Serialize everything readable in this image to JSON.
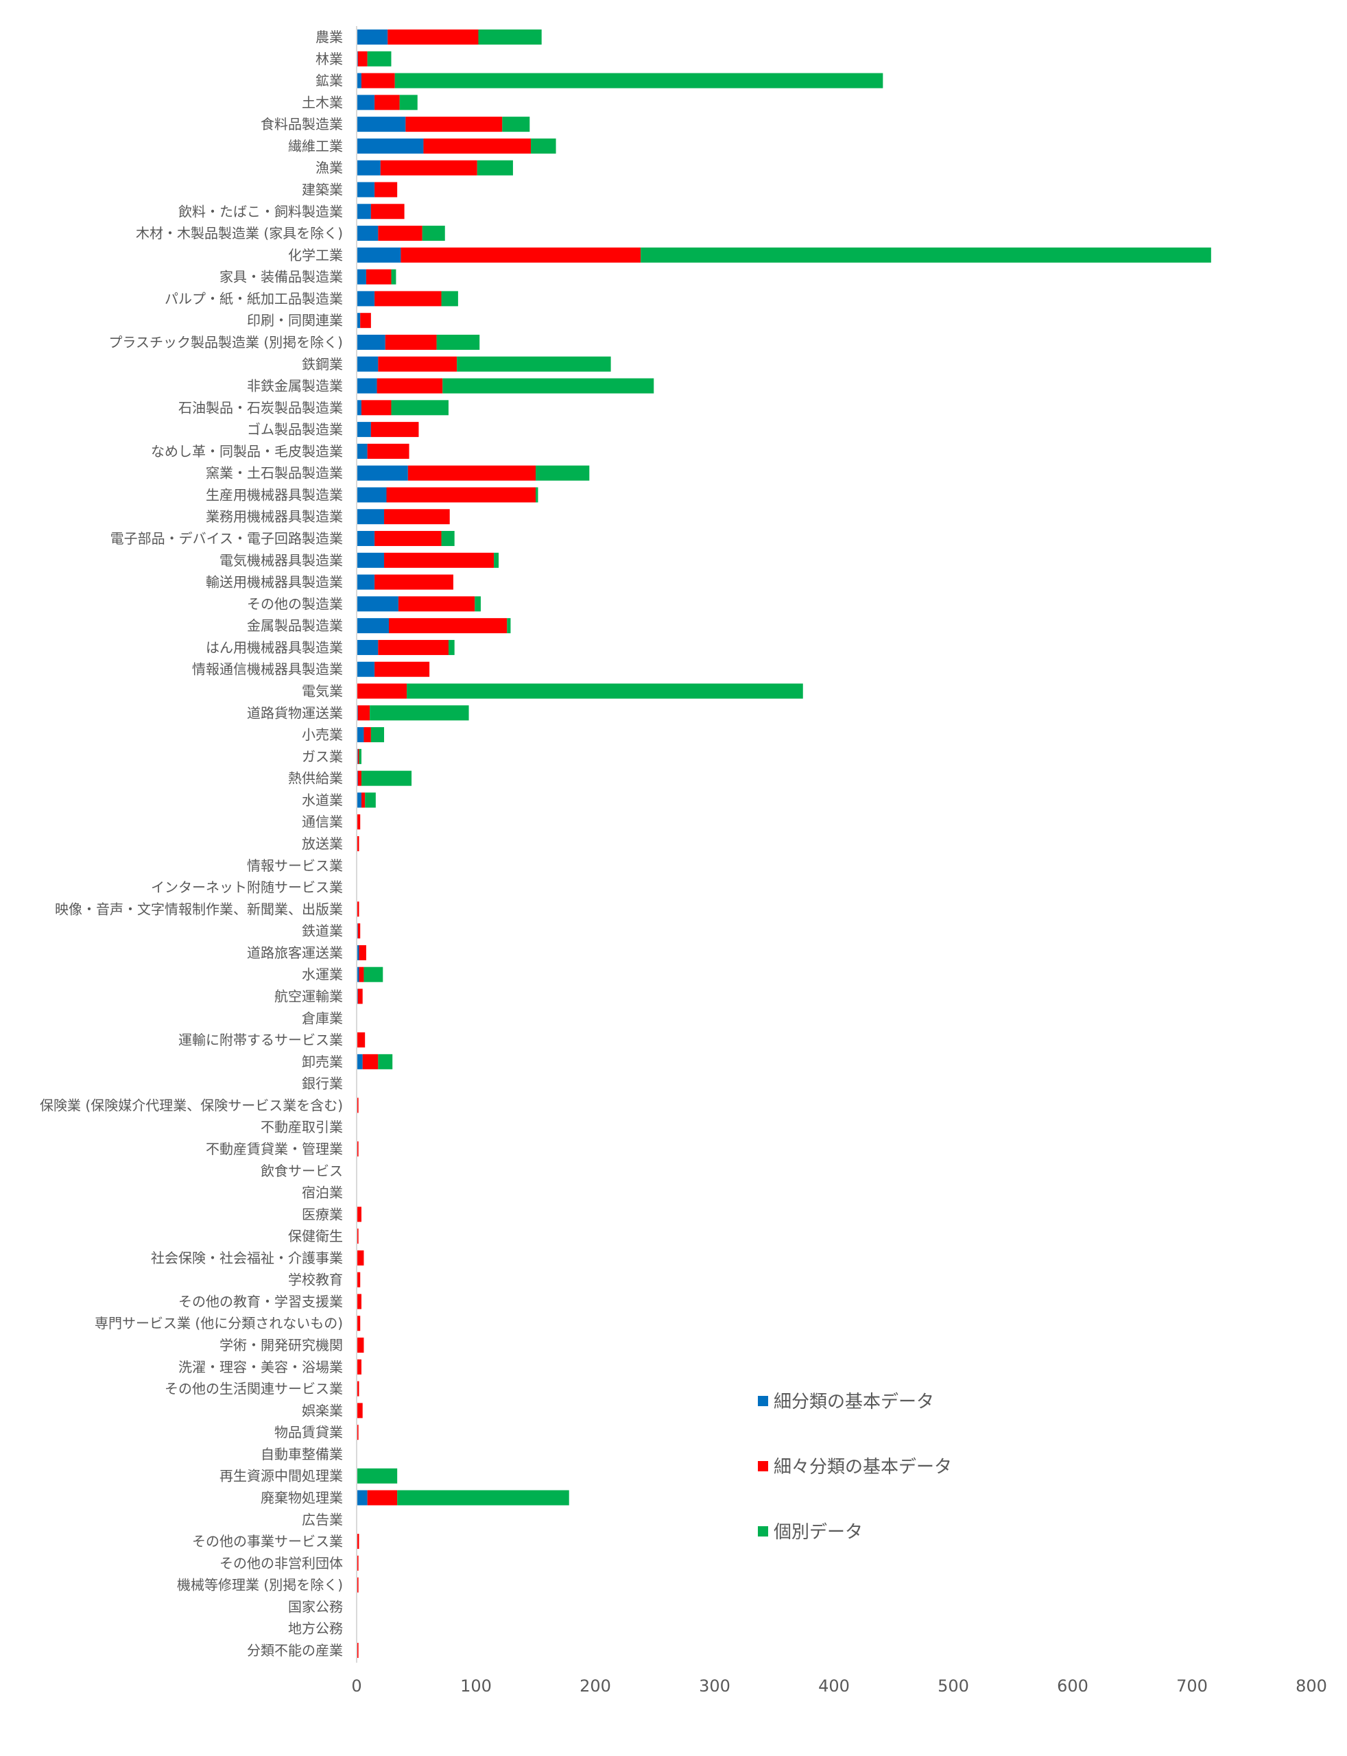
{
  "chart_data": {
    "type": "bar",
    "orientation": "horizontal",
    "stacked": true,
    "title": "",
    "xlabel": "",
    "ylabel": "",
    "xlim": [
      0,
      800
    ],
    "xticks": [
      0,
      100,
      200,
      300,
      400,
      500,
      600,
      700,
      800
    ],
    "grid": false,
    "legend_position": "bottom-right",
    "categories": [
      "農業",
      "林業",
      "鉱業",
      "土木業",
      "食料品製造業",
      "繊維工業",
      "漁業",
      "建築業",
      "飲料・たばこ・飼料製造業",
      "木材・木製品製造業 (家具を除く)",
      "化学工業",
      "家具・装備品製造業",
      "パルプ・紙・紙加工品製造業",
      "印刷・同関連業",
      "プラスチック製品製造業 (別掲を除く)",
      "鉄鋼業",
      "非鉄金属製造業",
      "石油製品・石炭製品製造業",
      "ゴム製品製造業",
      "なめし革・同製品・毛皮製造業",
      "窯業・土石製品製造業",
      "生産用機械器具製造業",
      "業務用機械器具製造業",
      "電子部品・デバイス・電子回路製造業",
      "電気機械器具製造業",
      "輸送用機械器具製造業",
      "その他の製造業",
      "金属製品製造業",
      "はん用機械器具製造業",
      "情報通信機械器具製造業",
      "電気業",
      "道路貨物運送業",
      "小売業",
      "ガス業",
      "熱供給業",
      "水道業",
      "通信業",
      "放送業",
      "情報サービス業",
      "インターネット附随サービス業",
      "映像・音声・文字情報制作業、新聞業、出版業",
      "鉄道業",
      "道路旅客運送業",
      "水運業",
      "航空運輸業",
      "倉庫業",
      "運輸に附帯するサービス業",
      "卸売業",
      "銀行業",
      "保険業 (保険媒介代理業、保険サービス業を含む)",
      "不動産取引業",
      "不動産賃貸業・管理業",
      "飲食サービス",
      "宿泊業",
      "医療業",
      "保健衛生",
      "社会保険・社会福祉・介護事業",
      "学校教育",
      "その他の教育・学習支援業",
      "専門サービス業 (他に分類されないもの)",
      "学術・開発研究機関",
      "洗濯・理容・美容・浴場業",
      "その他の生活関連サービス業",
      "娯楽業",
      "物品賃貸業",
      "自動車整備業",
      "再生資源中間処理業",
      "廃棄物処理業",
      "広告業",
      "その他の事業サービス業",
      "その他の非営利団体",
      "機械等修理業 (別掲を除く)",
      "国家公務",
      "地方公務",
      "分類不能の産業"
    ],
    "series": [
      {
        "name": "細分類の基本データ",
        "color": "#0070C0",
        "values": [
          26,
          1,
          4,
          15,
          41,
          56,
          20,
          15,
          12,
          18,
          37,
          8,
          15,
          3,
          24,
          18,
          17,
          4,
          12,
          9,
          43,
          25,
          23,
          15,
          23,
          15,
          35,
          27,
          18,
          15,
          0,
          1,
          6,
          1,
          1,
          4,
          0,
          0,
          0,
          0,
          0,
          1,
          2,
          2,
          1,
          0,
          0,
          5,
          0,
          0,
          0,
          0,
          0,
          0,
          0,
          0,
          0,
          0,
          0,
          0,
          0,
          0,
          0,
          0,
          0,
          0,
          0,
          9,
          0,
          0,
          0,
          0,
          0,
          0,
          0
        ]
      },
      {
        "name": "細々分類の基本データ",
        "color": "#FF0000",
        "values": [
          76,
          8,
          28,
          21,
          81,
          90,
          81,
          19,
          28,
          37,
          201,
          21,
          56,
          9,
          43,
          66,
          55,
          25,
          40,
          35,
          107,
          125,
          55,
          56,
          92,
          66,
          64,
          99,
          59,
          46,
          42,
          10,
          6,
          1,
          3,
          3,
          3,
          2,
          0.5,
          0.3,
          2,
          2,
          6,
          4,
          4,
          0.5,
          7,
          13,
          0.5,
          1.5,
          0.5,
          1.5,
          0.5,
          0.5,
          4,
          1.5,
          6,
          3,
          4,
          3,
          6,
          4,
          2,
          5,
          1.5,
          0.5,
          0,
          25,
          0.5,
          2,
          1.5,
          1.5,
          0.5,
          0.5,
          1.5
        ]
      },
      {
        "name": "個別データ",
        "color": "#00B050",
        "values": [
          53,
          20,
          409,
          15,
          23,
          21,
          30,
          0,
          0,
          19,
          478,
          4,
          14,
          0,
          36,
          129,
          177,
          48,
          0,
          0,
          45,
          2,
          0,
          11,
          4,
          0,
          5,
          3,
          5,
          0,
          332,
          83,
          11,
          2,
          42,
          9,
          0,
          0,
          0,
          0,
          0,
          0,
          0,
          16,
          0,
          0,
          0,
          12,
          0,
          0,
          0,
          0,
          0,
          0,
          0,
          0,
          0,
          0,
          0,
          0,
          0,
          0,
          0,
          0,
          0,
          0,
          34,
          144,
          0,
          0,
          0,
          0,
          0,
          0,
          0
        ]
      }
    ]
  }
}
